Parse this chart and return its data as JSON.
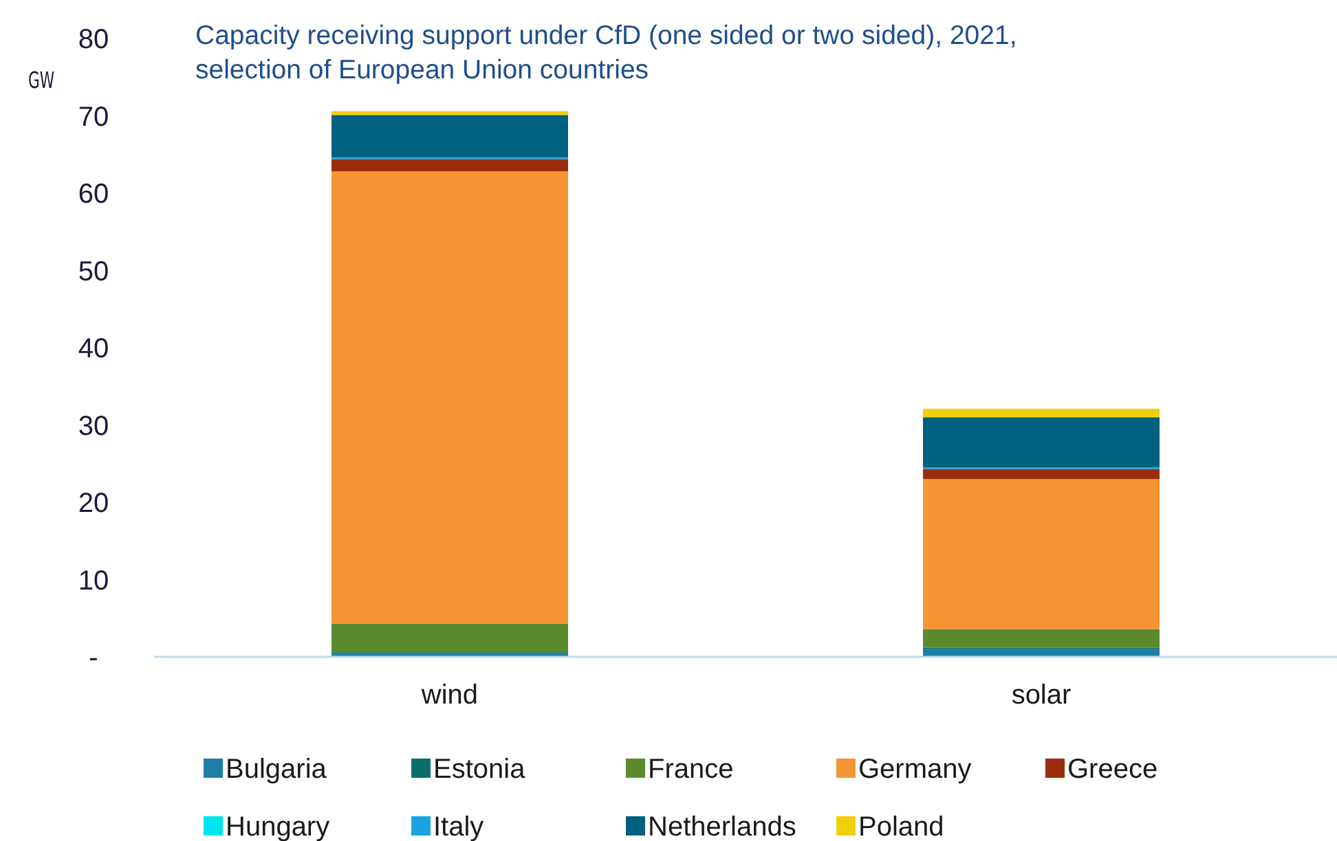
{
  "chart_data": {
    "type": "bar",
    "title": "Capacity receiving support under CfD (one sided or two sided), 2021, selection of European Union countries",
    "ylabel": "GW",
    "categories": [
      "wind",
      "solar"
    ],
    "stacked": true,
    "ylim": [
      0,
      80
    ],
    "yticks": [
      {
        "value": 0,
        "label": "-"
      },
      10,
      20,
      30,
      40,
      50,
      60,
      70,
      80
    ],
    "grid": false,
    "legend": "bottom",
    "series": [
      {
        "name": "Bulgaria",
        "color": "#1f7ea6",
        "values": [
          0.4,
          1.0
        ]
      },
      {
        "name": "Estonia",
        "color": "#0a6e6e",
        "values": [
          0.2,
          0.2
        ]
      },
      {
        "name": "France",
        "color": "#5b8a2f",
        "values": [
          3.7,
          2.4
        ]
      },
      {
        "name": "Germany",
        "color": "#f79433",
        "values": [
          58.5,
          19.4
        ]
      },
      {
        "name": "Greece",
        "color": "#9b2d0f",
        "values": [
          1.6,
          1.3
        ]
      },
      {
        "name": "Hungary",
        "color": "#00e5ee",
        "values": [
          0,
          0
        ]
      },
      {
        "name": "Italy",
        "color": "#1ba3e0",
        "values": [
          0.2,
          0.2
        ]
      },
      {
        "name": "Netherlands",
        "color": "#006080",
        "values": [
          5.5,
          6.5
        ]
      },
      {
        "name": "Poland",
        "color": "#f2cf0c",
        "values": [
          0.5,
          1.1
        ]
      }
    ]
  }
}
